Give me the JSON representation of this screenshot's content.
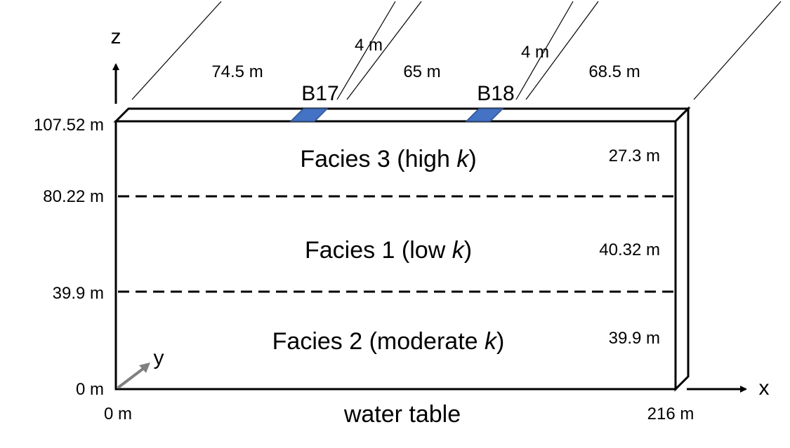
{
  "axes": {
    "z_label": "z",
    "x_label": "x",
    "y_label": "y",
    "z_ticks": [
      "107.52 m",
      "80.22 m",
      "39.9 m",
      "0 m"
    ],
    "x_start": "0 m",
    "x_end": "216 m"
  },
  "bottom_label": "water table",
  "facies": [
    {
      "name": "Facies 3 (high ",
      "k": "k",
      "close": ")",
      "thickness": "27.3 m"
    },
    {
      "name": "Facies 1 (low ",
      "k": "k",
      "close": ")",
      "thickness": "40.32 m"
    },
    {
      "name": "Facies 2 (moderate ",
      "k": "k",
      "close": ")",
      "thickness": "39.9 m"
    }
  ],
  "wells": [
    {
      "name": "B17",
      "width": "4 m"
    },
    {
      "name": "B18",
      "width": "4 m"
    }
  ],
  "spacings": [
    "74.5 m",
    "65 m",
    "68.5 m"
  ],
  "colors": {
    "line": "#000000",
    "well_fill": "#4472C4",
    "well_stroke": "#2F528F",
    "y_axis": "#808080"
  }
}
